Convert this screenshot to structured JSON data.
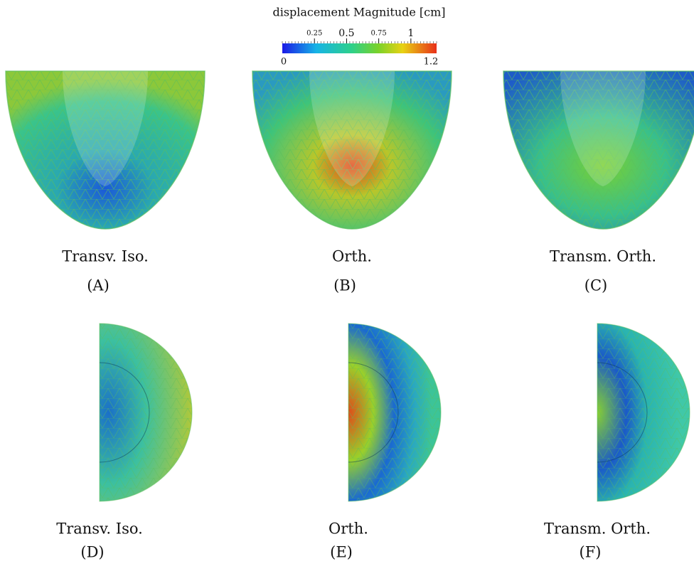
{
  "colorbar": {
    "title": "displacement Magnitude [cm]",
    "lim": [
      0,
      1.2
    ],
    "ticks": [
      0.25,
      0.5,
      0.75,
      1
    ]
  },
  "panels": [
    {
      "caption": "Transv. Iso.",
      "letter": "(A)"
    },
    {
      "caption": "Orth.",
      "letter": "(B)"
    },
    {
      "caption": "Transm. Orth.",
      "letter": "(C)"
    },
    {
      "caption": "Transv. Iso.",
      "letter": "(D)"
    },
    {
      "caption": "Orth.",
      "letter": "(E)"
    },
    {
      "caption": "Transm. Orth.",
      "letter": "(F)"
    }
  ]
}
